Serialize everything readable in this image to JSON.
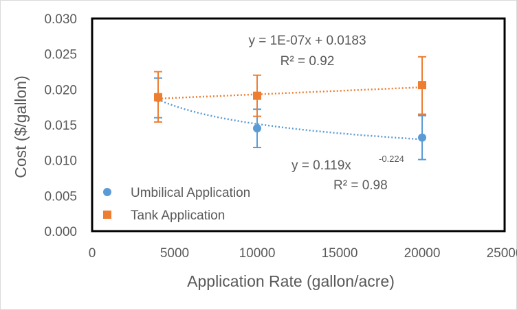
{
  "chart_data": {
    "type": "scatter",
    "title": "",
    "xlabel": "Application Rate (gallon/acre)",
    "ylabel": "Cost ($/gallon)",
    "xlim": [
      0,
      25000
    ],
    "ylim": [
      0,
      0.03
    ],
    "x_ticks": [
      "0",
      "5000",
      "10000",
      "15000",
      "20000",
      "25000"
    ],
    "y_ticks": [
      "0.000",
      "0.005",
      "0.010",
      "0.015",
      "0.020",
      "0.025",
      "0.030"
    ],
    "grid": false,
    "legend_position": "bottom-left",
    "series": [
      {
        "name": "Umbilical Application",
        "color": "#5B9BD5",
        "marker": "circle",
        "x": [
          4000,
          10000,
          20000
        ],
        "y": [
          0.0188,
          0.0145,
          0.0132
        ],
        "error_upper": [
          0.0216,
          0.0172,
          0.0163
        ],
        "error_lower": [
          0.016,
          0.0118,
          0.0101
        ],
        "trendline": {
          "type": "power",
          "a": 0.119,
          "b": -0.224,
          "equation": "y = 0.119x",
          "exponent": "-0.224",
          "r2": "R² = 0.98"
        }
      },
      {
        "name": "Tank Application",
        "color": "#ED7D31",
        "marker": "square",
        "x": [
          4000,
          10000,
          20000
        ],
        "y": [
          0.0189,
          0.0191,
          0.0206
        ],
        "error_upper": [
          0.0225,
          0.022,
          0.0246
        ],
        "error_lower": [
          0.0154,
          0.0162,
          0.0165
        ],
        "trendline": {
          "type": "linear",
          "slope": 1e-07,
          "intercept": 0.0183,
          "equation": "y = 1E-07x + 0.0183",
          "r2": "R² = 0.92"
        }
      }
    ]
  }
}
